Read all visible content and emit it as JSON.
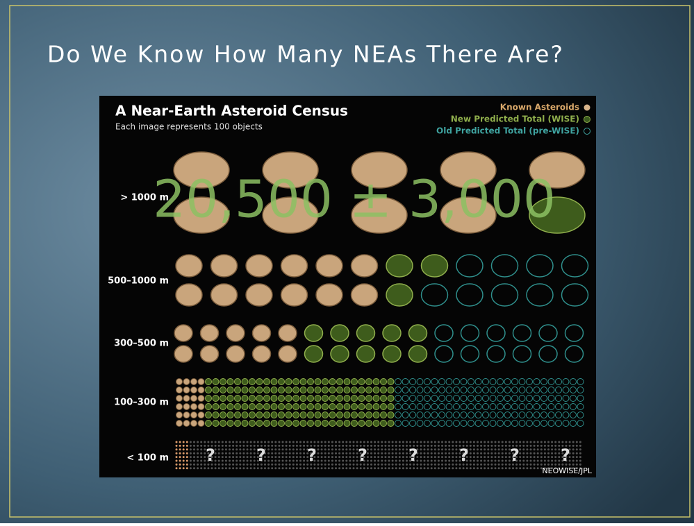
{
  "header": {
    "title": "Do We Know How Many NEAs There Are?"
  },
  "census": {
    "title": "A Near-Earth Asteroid Census",
    "subtitle": "Each image represents 100 objects",
    "legend": [
      "Known Asteroids",
      "New Predicted Total (WISE)",
      "Old Predicted Total (pre-WISE)"
    ],
    "rows": [
      "> 1000 m",
      "500–1000 m",
      "300–500 m",
      "100–300 m",
      "< 100 m"
    ],
    "unknown_marks": [
      "?",
      "?",
      "?",
      "?",
      "?",
      "?",
      "?",
      "?"
    ],
    "credit": "NEOWISE/JPL"
  },
  "overlay": "20,500 ± 3,000"
}
